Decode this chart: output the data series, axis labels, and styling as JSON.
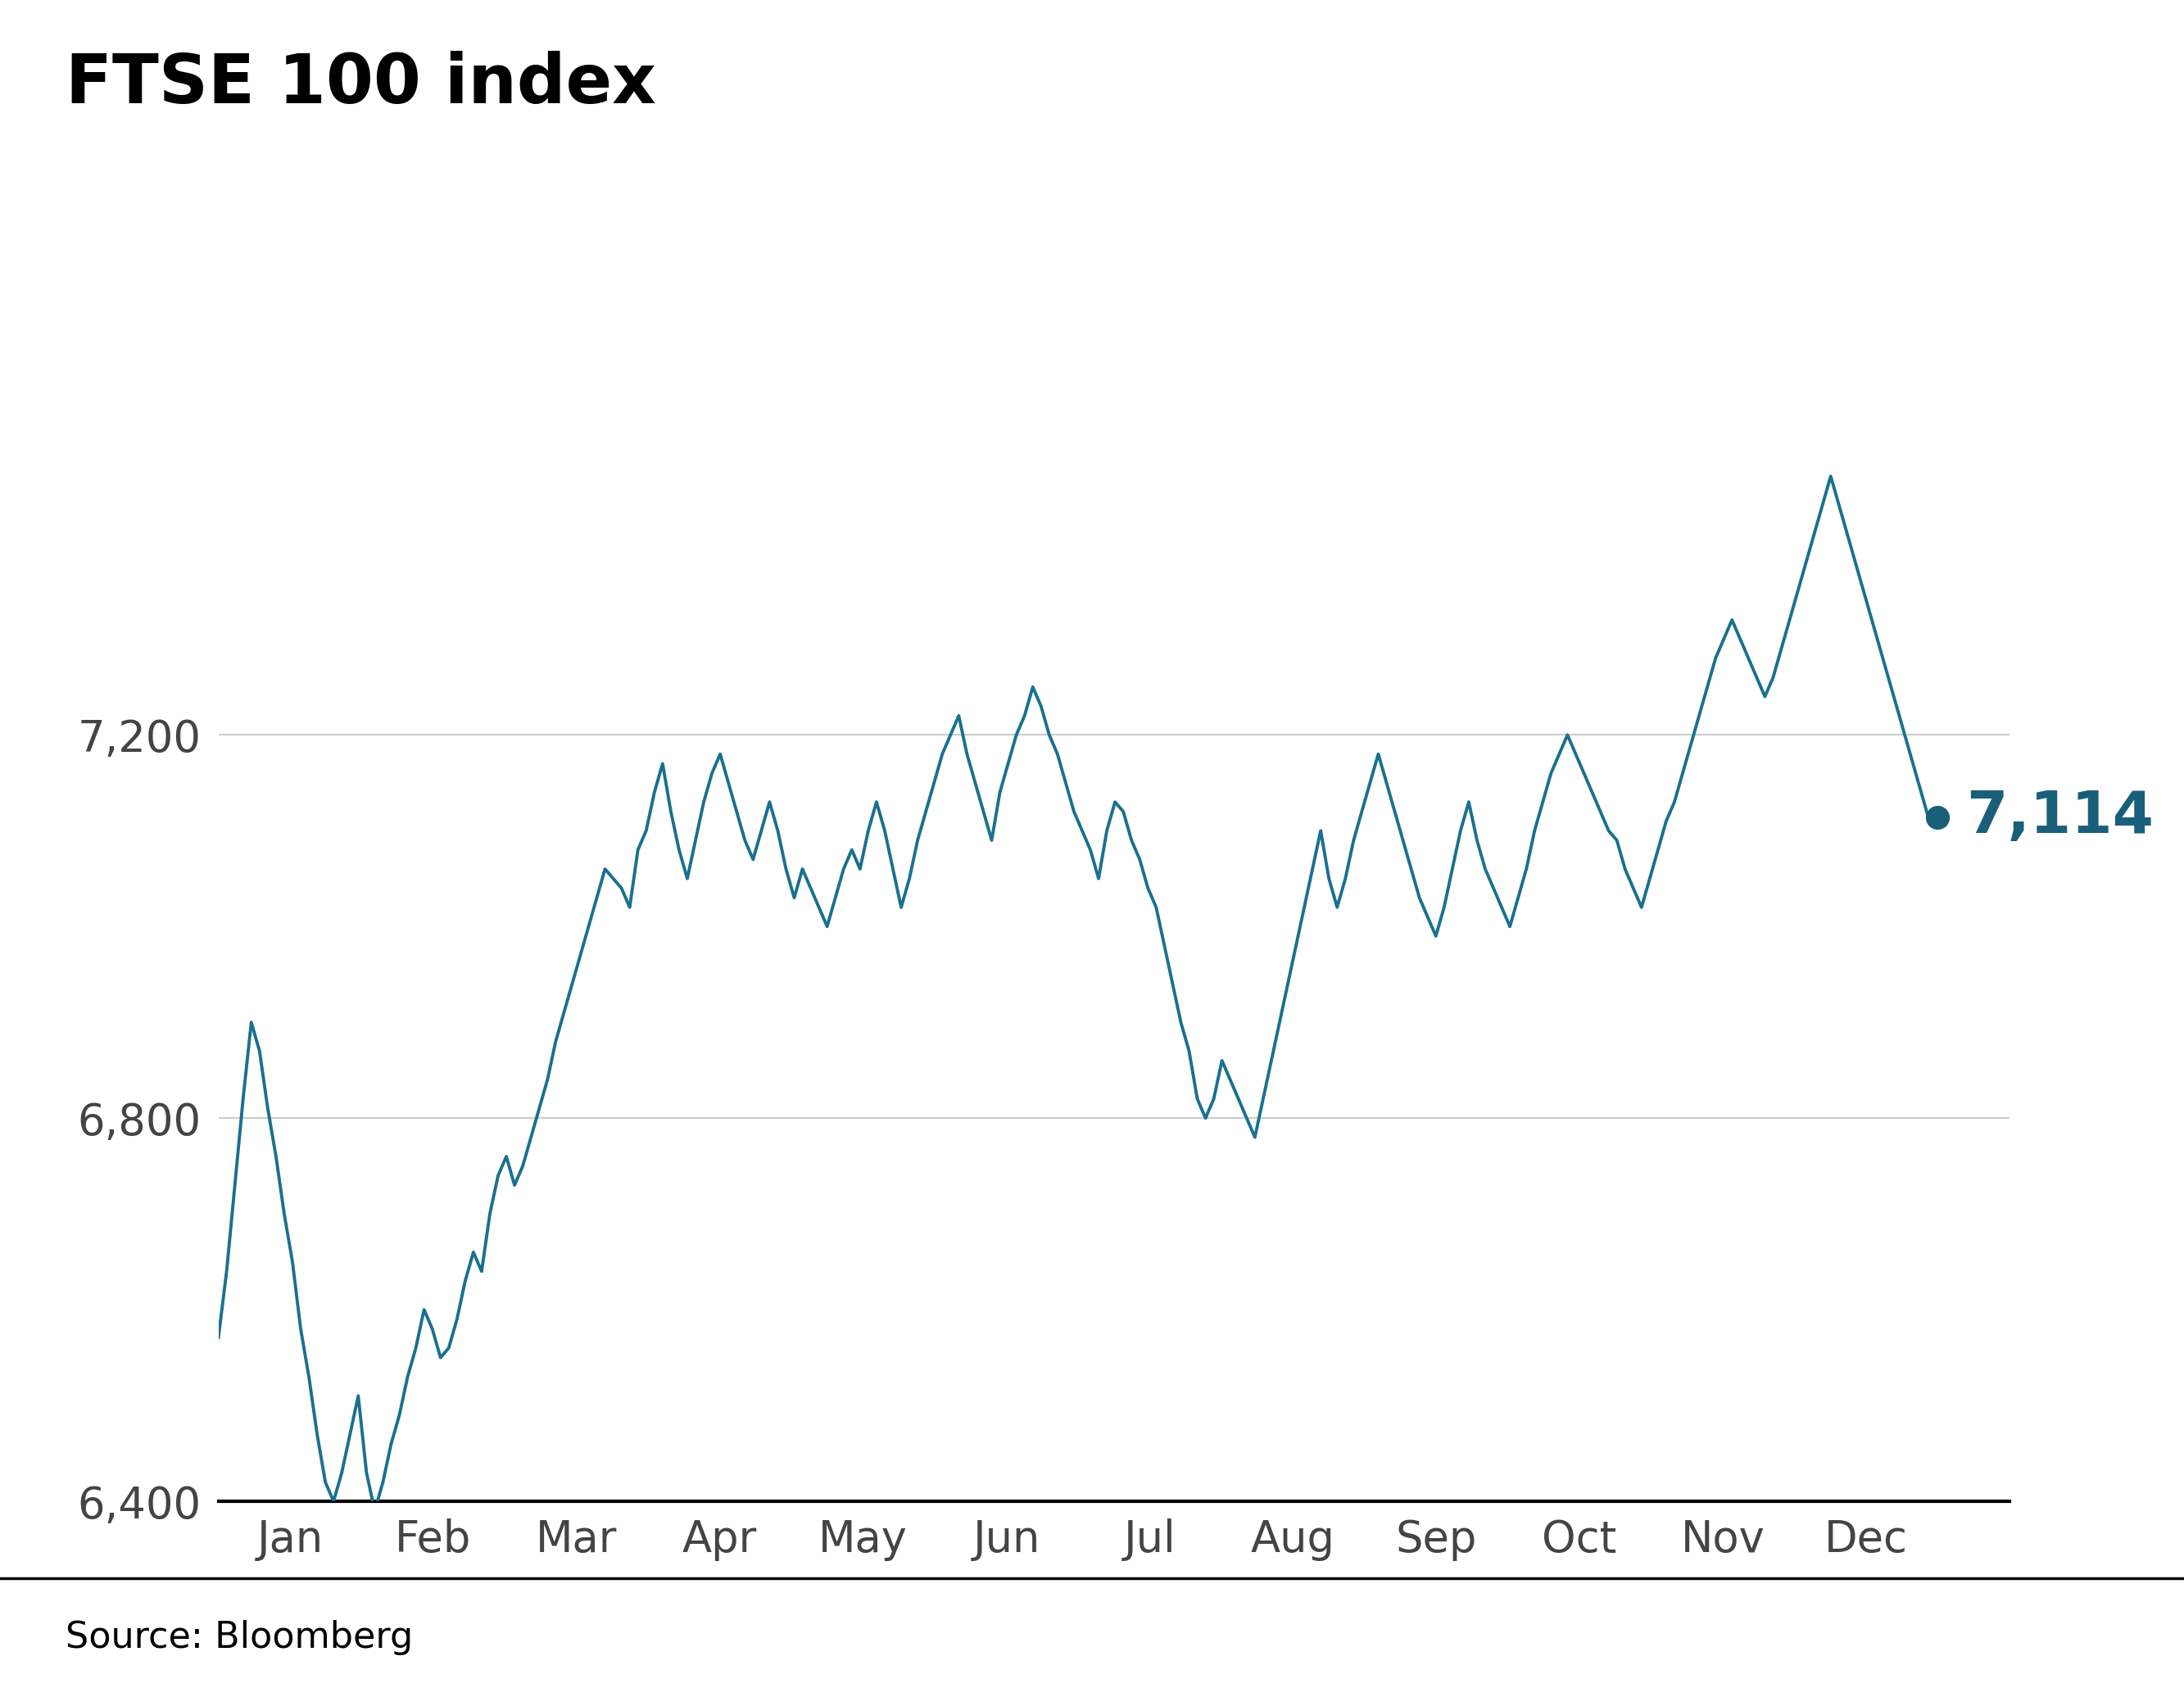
{
  "title": "FTSE 100 index",
  "source_text": "Source: Bloomberg",
  "line_color": "#1a7090",
  "dot_color": "#1a5f7a",
  "annotation_value": "7,114",
  "annotation_color": "#1a5f7a",
  "ylim": [
    6400,
    7700
  ],
  "yticks": [
    6400,
    6800,
    7200
  ],
  "background_color": "#ffffff",
  "grid_color": "#cccccc",
  "title_fontsize": 60,
  "axis_fontsize": 38,
  "annotation_fontsize": 52,
  "source_fontsize": 32,
  "months": [
    "Jan",
    "Feb",
    "Mar",
    "Apr",
    "May",
    "Jun",
    "Jul",
    "Aug",
    "Sep",
    "Oct",
    "Nov",
    "Dec"
  ],
  "values": [
    6571,
    6640,
    6730,
    6820,
    6900,
    6870,
    6810,
    6760,
    6700,
    6650,
    6580,
    6530,
    6470,
    6420,
    6400,
    6430,
    6470,
    6510,
    6430,
    6390,
    6420,
    6460,
    6490,
    6530,
    6560,
    6600,
    6580,
    6550,
    6560,
    6590,
    6630,
    6660,
    6640,
    6700,
    6740,
    6760,
    6730,
    6750,
    6780,
    6810,
    6840,
    6880,
    6910,
    6940,
    6970,
    7000,
    7030,
    7060,
    7050,
    7040,
    7020,
    7080,
    7100,
    7140,
    7170,
    7120,
    7080,
    7050,
    7090,
    7130,
    7160,
    7180,
    7150,
    7120,
    7090,
    7070,
    7100,
    7130,
    7100,
    7060,
    7030,
    7060,
    7040,
    7020,
    7000,
    7030,
    7060,
    7080,
    7060,
    7100,
    7130,
    7100,
    7060,
    7020,
    7050,
    7090,
    7120,
    7150,
    7180,
    7200,
    7220,
    7180,
    7150,
    7120,
    7090,
    7140,
    7170,
    7200,
    7220,
    7250,
    7230,
    7200,
    7180,
    7150,
    7120,
    7100,
    7080,
    7050,
    7100,
    7130,
    7120,
    7090,
    7070,
    7040,
    7020,
    6980,
    6940,
    6900,
    6870,
    6820,
    6800,
    6820,
    6860,
    6840,
    6820,
    6800,
    6780,
    6820,
    6860,
    6900,
    6940,
    6980,
    7020,
    7060,
    7100,
    7050,
    7020,
    7050,
    7090,
    7120,
    7150,
    7180,
    7150,
    7120,
    7090,
    7060,
    7030,
    7010,
    6990,
    7020,
    7060,
    7100,
    7130,
    7090,
    7060,
    7040,
    7020,
    7000,
    7030,
    7060,
    7100,
    7130,
    7160,
    7180,
    7200,
    7180,
    7160,
    7140,
    7120,
    7100,
    7090,
    7060,
    7040,
    7020,
    7050,
    7080,
    7110,
    7130,
    7160,
    7190,
    7220,
    7250,
    7280,
    7300,
    7320,
    7300,
    7280,
    7260,
    7240,
    7260,
    7290,
    7320,
    7350,
    7380,
    7410,
    7440,
    7470,
    7440,
    7410,
    7380,
    7350,
    7320,
    7290,
    7260,
    7230,
    7200,
    7170,
    7140,
    7110,
    7114
  ]
}
